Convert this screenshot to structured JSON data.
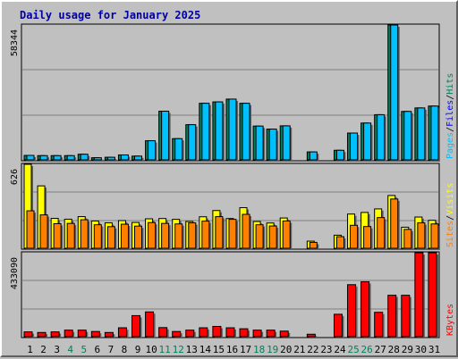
{
  "chart_data": {
    "type": "bar",
    "title": "Daily usage for January 2025",
    "categories": [
      "1",
      "2",
      "3",
      "4",
      "5",
      "6",
      "7",
      "8",
      "9",
      "10",
      "11",
      "12",
      "13",
      "14",
      "15",
      "16",
      "17",
      "18",
      "19",
      "20",
      "21",
      "22",
      "23",
      "24",
      "25",
      "26",
      "27",
      "28",
      "29",
      "30",
      "31"
    ],
    "weekend_days": [
      4,
      5,
      11,
      12,
      18,
      19,
      25,
      26
    ],
    "colors": {
      "hits": "#00805c",
      "files": "#0000ff",
      "pages": "#00c0ff",
      "visits": "#ffff00",
      "sites": "#ff8000",
      "kbytes": "#ff0000",
      "weekend_label": "#00805c",
      "title": "#0000a0"
    },
    "panels": [
      {
        "name": "hits-files-pages",
        "max_label": "58344",
        "max": 58344,
        "legend": [
          {
            "label": "Pages",
            "color": "#00c0ff"
          },
          {
            "label": "/",
            "color": "#000000"
          },
          {
            "label": "Files",
            "color": "#0000ff"
          },
          {
            "label": "/",
            "color": "#000000"
          },
          {
            "label": "Hits",
            "color": "#00805c"
          }
        ],
        "series": [
          {
            "name": "Hits",
            "color": "#00805c",
            "values": [
              2300,
              2200,
              2200,
              2200,
              2800,
              1300,
              1500,
              2500,
              2000,
              8600,
              21300,
              9500,
              15500,
              24700,
              25300,
              26500,
              24700,
              14900,
              13600,
              15000,
              0,
              3800,
              0,
              4500,
              11900,
              16200,
              19800,
              58344,
              21200,
              22700,
              23500
            ]
          },
          {
            "name": "Pages",
            "color": "#00c0ff",
            "values": [
              2300,
              2200,
              2200,
              2200,
              2800,
              1300,
              1500,
              2500,
              2000,
              8600,
              21300,
              9500,
              15500,
              24700,
              25300,
              26500,
              24700,
              14900,
              13600,
              15000,
              0,
              3800,
              0,
              4500,
              11900,
              16200,
              19800,
              58344,
              21200,
              22700,
              23500
            ]
          }
        ]
      },
      {
        "name": "visits-sites",
        "max_label": "626",
        "max": 626,
        "legend": [
          {
            "label": "Sites",
            "color": "#ff8000"
          },
          {
            "label": "/",
            "color": "#000000"
          },
          {
            "label": "Visits",
            "color": "#ffff00"
          }
        ],
        "series": [
          {
            "name": "Visits",
            "color": "#ffff00",
            "values": [
              626,
              467,
              227,
              221,
              240,
              208,
              194,
              211,
              197,
              224,
              226,
              220,
              204,
              239,
              285,
              226,
              306,
              204,
              193,
              230,
              0,
              59,
              0,
              103,
              259,
              271,
              297,
              396,
              162,
              237,
              213
            ]
          },
          {
            "name": "Sites",
            "color": "#ff8000",
            "values": [
              283,
              253,
              188,
              190,
              217,
              180,
              166,
              184,
              170,
              196,
              190,
              186,
              194,
              207,
              240,
              220,
              257,
              180,
              171,
              208,
              0,
              50,
              0,
              92,
              176,
              167,
              233,
              370,
              146,
              194,
              186
            ]
          }
        ]
      },
      {
        "name": "kbytes",
        "max_label": "433090",
        "max": 433090,
        "legend": [
          {
            "label": "KBytes",
            "color": "#ff0000"
          }
        ],
        "series": [
          {
            "name": "KBytes",
            "color": "#ff0000",
            "values": [
              29000,
              26000,
              29000,
              38000,
              38000,
              31000,
              26000,
              50000,
              112000,
              131000,
              51000,
              31000,
              38000,
              50000,
              57000,
              50000,
              45000,
              38000,
              38000,
              33000,
              0,
              17000,
              0,
              119000,
              270000,
              285000,
              129000,
              216000,
              216000,
              433090,
              433090
            ]
          }
        ]
      }
    ]
  }
}
